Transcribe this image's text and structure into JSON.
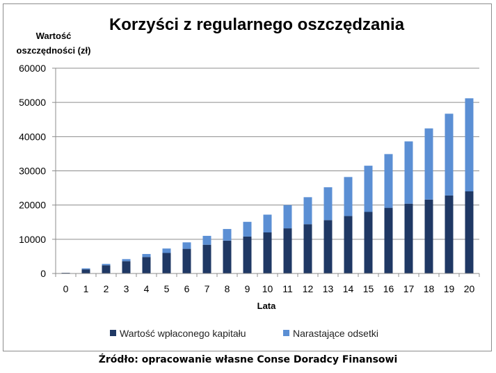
{
  "chart_data": {
    "type": "bar",
    "stacked": true,
    "title": "Korzyści z regularnego oszczędzania",
    "ylabel_lines": [
      "Wartość",
      "oszczędności (zł)"
    ],
    "xlabel": "Lata",
    "ylim": [
      0,
      60000
    ],
    "yticks": [
      0,
      10000,
      20000,
      30000,
      40000,
      50000,
      60000
    ],
    "grid": "horizontal",
    "legend_position": "bottom",
    "categories": [
      "0",
      "1",
      "2",
      "3",
      "4",
      "5",
      "6",
      "7",
      "8",
      "9",
      "10",
      "11",
      "12",
      "13",
      "14",
      "15",
      "16",
      "17",
      "18",
      "19",
      "20"
    ],
    "series": [
      {
        "name": "Wartość wpłaconego kapitału",
        "color": "#1F3864",
        "values": [
          200,
          1200,
          2400,
          3600,
          4800,
          6000,
          7200,
          8400,
          9600,
          10800,
          12000,
          13200,
          14400,
          15600,
          16800,
          18000,
          19200,
          20400,
          21600,
          22800,
          24000
        ]
      },
      {
        "name": "Narastające odsetki",
        "color": "#5B8FD4",
        "values": [
          0,
          300,
          400,
          600,
          900,
          1300,
          1900,
          2600,
          3400,
          4300,
          5200,
          6800,
          7900,
          9600,
          11400,
          13500,
          15700,
          18200,
          20800,
          23900,
          27200
        ]
      }
    ]
  },
  "source_note": "Źródło: opracowanie własne Conse Doradcy Finansowi"
}
